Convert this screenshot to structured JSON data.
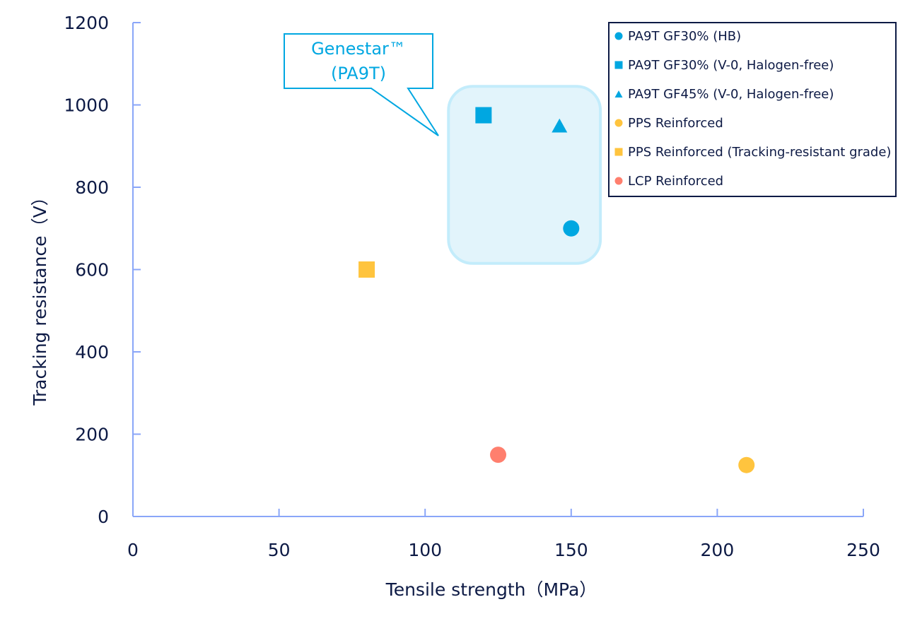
{
  "chart_data": {
    "type": "scatter",
    "title": "",
    "xlabel": "Tensile strength（MPa）",
    "ylabel": "Tracking resistance（V）",
    "xlim": [
      0,
      250
    ],
    "ylim": [
      0,
      1200
    ],
    "xticks": [
      0,
      50,
      100,
      150,
      200,
      250
    ],
    "yticks": [
      0,
      200,
      400,
      600,
      800,
      1000,
      1200
    ],
    "grid": false,
    "legend_position": "top-right",
    "series": [
      {
        "name": "PA9T GF30% (HB)",
        "marker": "circle",
        "color": "#00a7e1",
        "points": [
          {
            "x": 150,
            "y": 700
          }
        ]
      },
      {
        "name": "PA9T GF30% (V-0, Halogen-free)",
        "marker": "square",
        "color": "#00a7e1",
        "points": [
          {
            "x": 120,
            "y": 975
          }
        ]
      },
      {
        "name": "PA9T GF45% (V-0, Halogen-free)",
        "marker": "triangle",
        "color": "#00a7e1",
        "points": [
          {
            "x": 146,
            "y": 950
          }
        ]
      },
      {
        "name": "PPS Reinforced",
        "marker": "circle",
        "color": "#ffc43e",
        "points": [
          {
            "x": 210,
            "y": 125
          }
        ]
      },
      {
        "name": "PPS Reinforced (Tracking-resistant grade)",
        "marker": "square",
        "color": "#ffc43e",
        "points": [
          {
            "x": 80,
            "y": 600
          }
        ]
      },
      {
        "name": "LCP Reinforced",
        "marker": "circle",
        "color": "#ff7f6e",
        "points": [
          {
            "x": 125,
            "y": 150
          }
        ]
      }
    ],
    "annotations": [
      {
        "text_lines": [
          "Genestar™",
          "(PA9T)"
        ],
        "type": "callout",
        "color": "#00a7e1",
        "highlight_region": {
          "x_from": 108,
          "x_to": 160,
          "y_from": 615,
          "y_to": 1045
        }
      }
    ]
  },
  "colors": {
    "axis": "#8aa6f8",
    "text": "#0d1a45",
    "highlight_fill": "#e2f4fb",
    "highlight_stroke": "#c3ecfb",
    "legend_border": "#0d1a45"
  }
}
